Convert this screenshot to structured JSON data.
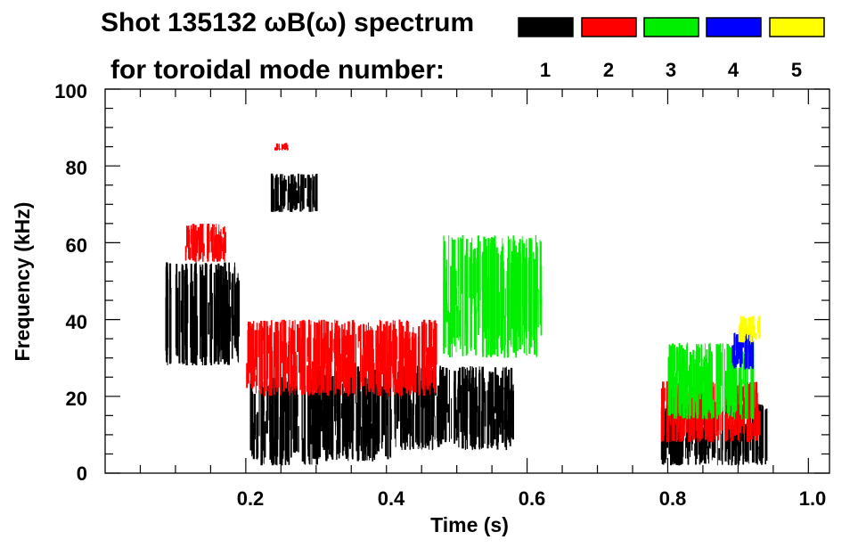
{
  "chart_data": {
    "type": "scatter",
    "title_line1": "Shot 135132 ωB(ω) spectrum",
    "title_line2": "for toroidal mode number:",
    "xlabel": "Time (s)",
    "ylabel": "Frequency (kHz)",
    "xlim": [
      0.0,
      1.03
    ],
    "ylim": [
      0,
      100
    ],
    "x_ticks": [
      0.2,
      0.4,
      0.6,
      0.8,
      1.0
    ],
    "x_tick_labels": [
      "0.2",
      "0.4",
      "0.6",
      "0.8",
      "1.0"
    ],
    "y_ticks": [
      0,
      20,
      40,
      60,
      80,
      100
    ],
    "y_tick_labels": [
      "0",
      "20",
      "40",
      "60",
      "80",
      "100"
    ],
    "legend": [
      {
        "mode": "1",
        "color": "#000000"
      },
      {
        "mode": "2",
        "color": "#ff0000"
      },
      {
        "mode": "3",
        "color": "#00ee00"
      },
      {
        "mode": "4",
        "color": "#0000ff"
      },
      {
        "mode": "5",
        "color": "#ffff00"
      }
    ],
    "series": [
      {
        "name": "n=1",
        "color": "#000000",
        "regions": [
          {
            "t0": 0.085,
            "t1": 0.19,
            "f0": 28,
            "f1": 55
          },
          {
            "t0": 0.205,
            "t1": 0.3,
            "f0": 2,
            "f1": 25
          },
          {
            "t0": 0.235,
            "t1": 0.3,
            "f0": 68,
            "f1": 78
          },
          {
            "t0": 0.3,
            "t1": 0.42,
            "f0": 3,
            "f1": 28
          },
          {
            "t0": 0.42,
            "t1": 0.58,
            "f0": 6,
            "f1": 28
          },
          {
            "t0": 0.79,
            "t1": 0.94,
            "f0": 2,
            "f1": 18
          }
        ]
      },
      {
        "name": "n=2",
        "color": "#ff0000",
        "regions": [
          {
            "t0": 0.11,
            "t1": 0.17,
            "f0": 55,
            "f1": 65
          },
          {
            "t0": 0.2,
            "t1": 0.47,
            "f0": 20,
            "f1": 40
          },
          {
            "t0": 0.24,
            "t1": 0.26,
            "f0": 84,
            "f1": 86
          },
          {
            "t0": 0.79,
            "t1": 0.93,
            "f0": 8,
            "f1": 24
          }
        ]
      },
      {
        "name": "n=3",
        "color": "#00ee00",
        "regions": [
          {
            "t0": 0.8,
            "t1": 0.92,
            "f0": 14,
            "f1": 34
          },
          {
            "t0": 0.48,
            "t1": 0.62,
            "f0": 30,
            "f1": 62
          }
        ]
      },
      {
        "name": "n=4",
        "color": "#0000ff",
        "regions": [
          {
            "t0": 0.89,
            "t1": 0.92,
            "f0": 27,
            "f1": 37
          }
        ]
      },
      {
        "name": "n=5",
        "color": "#ffff00",
        "regions": [
          {
            "t0": 0.9,
            "t1": 0.93,
            "f0": 34,
            "f1": 41
          }
        ]
      }
    ]
  }
}
